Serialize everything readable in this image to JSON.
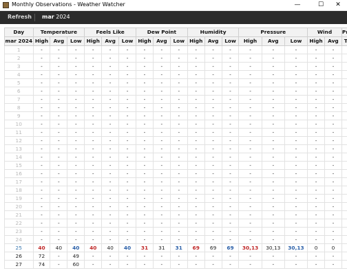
{
  "window": {
    "title": "Monthly Observations - Weather Watcher",
    "minimize_glyph": "—",
    "maximize_glyph": "☐",
    "close_glyph": "✕"
  },
  "toolbar": {
    "refresh_label": "Refresh",
    "month_bold": "mar",
    "year": "2024"
  },
  "table": {
    "groups": [
      "Day",
      "Temperature",
      "Feels Like",
      "Dew Point",
      "Humidity",
      "Pressure",
      "Wind",
      "Precip"
    ],
    "subheaders": [
      "mar 2024",
      "High",
      "Avg",
      "Low",
      "High",
      "Avg",
      "Low",
      "High",
      "Avg",
      "Low",
      "High",
      "Avg",
      "Low",
      "High",
      "Avg",
      "Low",
      "High",
      "Avg",
      "Total"
    ],
    "rows": [
      {
        "day": "1",
        "cells": [
          "-",
          "-",
          "-",
          "-",
          "-",
          "-",
          "-",
          "-",
          "-",
          "-",
          "-",
          "-",
          "-",
          "-",
          "-",
          "-",
          "-",
          "-"
        ]
      },
      {
        "day": "2",
        "cells": [
          "-",
          "-",
          "-",
          "-",
          "-",
          "-",
          "-",
          "-",
          "-",
          "-",
          "-",
          "-",
          "-",
          "-",
          "-",
          "-",
          "-",
          "-"
        ]
      },
      {
        "day": "3",
        "cells": [
          "-",
          "-",
          "-",
          "-",
          "-",
          "-",
          "-",
          "-",
          "-",
          "-",
          "-",
          "-",
          "-",
          "-",
          "-",
          "-",
          "-",
          "-"
        ]
      },
      {
        "day": "4",
        "cells": [
          "-",
          "-",
          "-",
          "-",
          "-",
          "-",
          "-",
          "-",
          "-",
          "-",
          "-",
          "-",
          "-",
          "-",
          "-",
          "-",
          "-",
          "-"
        ]
      },
      {
        "day": "5",
        "cells": [
          "-",
          "-",
          "-",
          "-",
          "-",
          "-",
          "-",
          "-",
          "-",
          "-",
          "-",
          "-",
          "-",
          "-",
          "-",
          "-",
          "-",
          "-"
        ]
      },
      {
        "day": "6",
        "cells": [
          "-",
          "-",
          "-",
          "-",
          "-",
          "-",
          "-",
          "-",
          "-",
          "-",
          "-",
          "-",
          "-",
          "-",
          "-",
          "-",
          "-",
          "-"
        ]
      },
      {
        "day": "7",
        "cells": [
          "-",
          "-",
          "-",
          "-",
          "-",
          "-",
          "-",
          "-",
          "-",
          "-",
          "-",
          "-",
          "-",
          "-",
          "-",
          "-",
          "-",
          "-"
        ]
      },
      {
        "day": "8",
        "cells": [
          "-",
          "-",
          "-",
          "-",
          "-",
          "-",
          "-",
          "-",
          "-",
          "-",
          "-",
          "-",
          "-",
          "-",
          "-",
          "-",
          "-",
          "-"
        ]
      },
      {
        "day": "9",
        "cells": [
          "-",
          "-",
          "-",
          "-",
          "-",
          "-",
          "-",
          "-",
          "-",
          "-",
          "-",
          "-",
          "-",
          "-",
          "-",
          "-",
          "-",
          "-"
        ]
      },
      {
        "day": "10",
        "cells": [
          "-",
          "-",
          "-",
          "-",
          "-",
          "-",
          "-",
          "-",
          "-",
          "-",
          "-",
          "-",
          "-",
          "-",
          "-",
          "-",
          "-",
          "-"
        ]
      },
      {
        "day": "11",
        "cells": [
          "-",
          "-",
          "-",
          "-",
          "-",
          "-",
          "-",
          "-",
          "-",
          "-",
          "-",
          "-",
          "-",
          "-",
          "-",
          "-",
          "-",
          "-"
        ]
      },
      {
        "day": "12",
        "cells": [
          "-",
          "-",
          "-",
          "-",
          "-",
          "-",
          "-",
          "-",
          "-",
          "-",
          "-",
          "-",
          "-",
          "-",
          "-",
          "-",
          "-",
          "-"
        ]
      },
      {
        "day": "13",
        "cells": [
          "-",
          "-",
          "-",
          "-",
          "-",
          "-",
          "-",
          "-",
          "-",
          "-",
          "-",
          "-",
          "-",
          "-",
          "-",
          "-",
          "-",
          "-"
        ]
      },
      {
        "day": "14",
        "cells": [
          "-",
          "-",
          "-",
          "-",
          "-",
          "-",
          "-",
          "-",
          "-",
          "-",
          "-",
          "-",
          "-",
          "-",
          "-",
          "-",
          "-",
          "-"
        ]
      },
      {
        "day": "15",
        "cells": [
          "-",
          "-",
          "-",
          "-",
          "-",
          "-",
          "-",
          "-",
          "-",
          "-",
          "-",
          "-",
          "-",
          "-",
          "-",
          "-",
          "-",
          "-"
        ]
      },
      {
        "day": "16",
        "cells": [
          "-",
          "-",
          "-",
          "-",
          "-",
          "-",
          "-",
          "-",
          "-",
          "-",
          "-",
          "-",
          "-",
          "-",
          "-",
          "-",
          "-",
          "-"
        ]
      },
      {
        "day": "17",
        "cells": [
          "-",
          "-",
          "-",
          "-",
          "-",
          "-",
          "-",
          "-",
          "-",
          "-",
          "-",
          "-",
          "-",
          "-",
          "-",
          "-",
          "-",
          "-"
        ]
      },
      {
        "day": "18",
        "cells": [
          "-",
          "-",
          "-",
          "-",
          "-",
          "-",
          "-",
          "-",
          "-",
          "-",
          "-",
          "-",
          "-",
          "-",
          "-",
          "-",
          "-",
          "-"
        ]
      },
      {
        "day": "19",
        "cells": [
          "-",
          "-",
          "-",
          "-",
          "-",
          "-",
          "-",
          "-",
          "-",
          "-",
          "-",
          "-",
          "-",
          "-",
          "-",
          "-",
          "-",
          "-"
        ]
      },
      {
        "day": "20",
        "cells": [
          "-",
          "-",
          "-",
          "-",
          "-",
          "-",
          "-",
          "-",
          "-",
          "-",
          "-",
          "-",
          "-",
          "-",
          "-",
          "-",
          "-",
          "-"
        ]
      },
      {
        "day": "21",
        "cells": [
          "-",
          "-",
          "-",
          "-",
          "-",
          "-",
          "-",
          "-",
          "-",
          "-",
          "-",
          "-",
          "-",
          "-",
          "-",
          "-",
          "-",
          "-"
        ]
      },
      {
        "day": "22",
        "cells": [
          "-",
          "-",
          "-",
          "-",
          "-",
          "-",
          "-",
          "-",
          "-",
          "-",
          "-",
          "-",
          "-",
          "-",
          "-",
          "-",
          "-",
          "-"
        ]
      },
      {
        "day": "23",
        "cells": [
          "-",
          "-",
          "-",
          "-",
          "-",
          "-",
          "-",
          "-",
          "-",
          "-",
          "-",
          "-",
          "-",
          "-",
          "-",
          "-",
          "-",
          "-"
        ]
      },
      {
        "day": "24",
        "cells": [
          "-",
          "-",
          "-",
          "-",
          "-",
          "-",
          "-",
          "-",
          "-",
          "-",
          "-",
          "-",
          "-",
          "-",
          "-",
          "-",
          "-",
          "-"
        ]
      },
      {
        "day": "25",
        "cells": [
          "40",
          "40",
          "40",
          "40",
          "40",
          "40",
          "31",
          "31",
          "31",
          "69",
          "69",
          "69",
          "30,13",
          "30,13",
          "30,13",
          "0",
          "0",
          "-"
        ]
      },
      {
        "day": "26",
        "cells": [
          "72",
          "-",
          "49",
          "-",
          "-",
          "-",
          "-",
          "-",
          "-",
          "-",
          "-",
          "-",
          "-",
          "-",
          "-",
          "-",
          "-",
          "-"
        ]
      },
      {
        "day": "27",
        "cells": [
          "74",
          "-",
          "60",
          "-",
          "-",
          "-",
          "-",
          "-",
          "-",
          "-",
          "-",
          "-",
          "-",
          "-",
          "-",
          "-",
          "-",
          "-"
        ]
      }
    ]
  },
  "colors": {
    "high": "#c02828",
    "low": "#2a5fa8",
    "active_day": "#3a78b0",
    "inactive_day": "#b8b8b8",
    "toolbar_bg": "#2b2b2b"
  }
}
